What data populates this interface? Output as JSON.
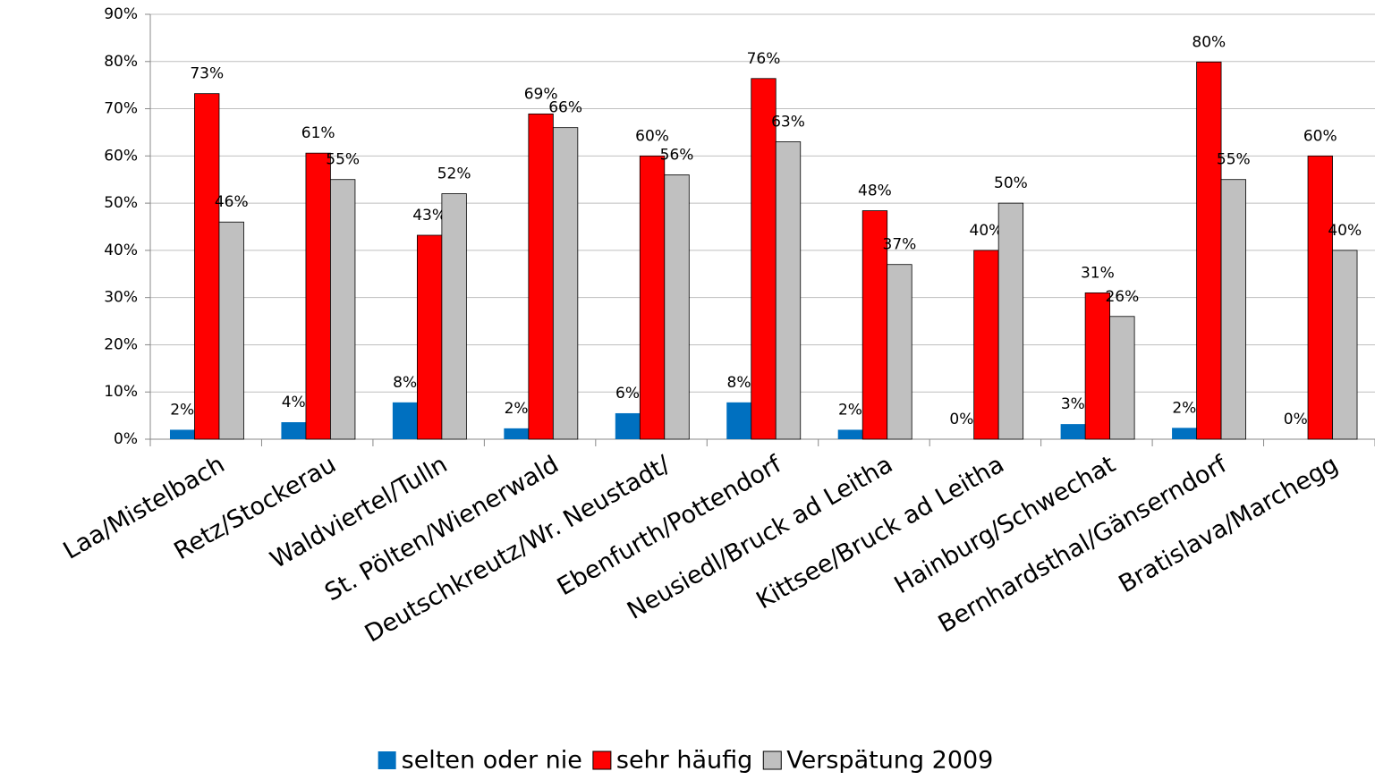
{
  "chart_data": {
    "type": "bar",
    "categories": [
      "Laa/Mistelbach",
      "Retz/Stockerau",
      "Waldviertel/Tulln",
      "St. Pölten/Wienerwald",
      "Deutschkreutz/Wr. Neustadt/",
      "Ebenfurth/Pottendorf",
      "Neusiedl/Bruck ad Leitha",
      "Kittsee/Bruck ad Leitha",
      "Hainburg/Schwechat",
      "Bernhardsthal/Gänserndorf",
      "Bratislava/Marchegg"
    ],
    "series": [
      {
        "name": "selten oder nie",
        "color": "#0070c0",
        "values": [
          2,
          3.6,
          7.8,
          2.3,
          5.5,
          7.8,
          2,
          0,
          3.2,
          2.4,
          0
        ],
        "value_labels": [
          "2%",
          "4%",
          "8%",
          "2%",
          "6%",
          "8%",
          "2%",
          "0%",
          "3%",
          "2%",
          "0%"
        ]
      },
      {
        "name": "sehr häufig",
        "color": "#ff0000",
        "values": [
          73.2,
          60.6,
          43.2,
          68.9,
          60,
          76.4,
          48.4,
          40,
          31,
          79.9,
          60
        ],
        "value_labels": [
          "73%",
          "61%",
          "43%",
          "69%",
          "60%",
          "76%",
          "48%",
          "40%",
          "31%",
          "80%",
          "60%"
        ]
      },
      {
        "name": "Verspätung 2009",
        "color": "#c0c0c0",
        "values": [
          46,
          55,
          52,
          66,
          56,
          63,
          37,
          50,
          26,
          55,
          40
        ],
        "value_labels": [
          "46%",
          "55%",
          "52%",
          "66%",
          "56%",
          "63%",
          "37%",
          "50%",
          "26%",
          "55%",
          "40%"
        ]
      }
    ],
    "ylim": [
      0,
      90
    ],
    "yticks": [
      {
        "value": 0,
        "label": "0%"
      },
      {
        "value": 10,
        "label": "10%"
      },
      {
        "value": 20,
        "label": "20%"
      },
      {
        "value": 30,
        "label": "30%"
      },
      {
        "value": 40,
        "label": "40%"
      },
      {
        "value": 50,
        "label": "50%"
      },
      {
        "value": 60,
        "label": "60%"
      },
      {
        "value": 70,
        "label": "70%"
      },
      {
        "value": 80,
        "label": "80%"
      },
      {
        "value": 90,
        "label": "90%"
      }
    ],
    "grid": true,
    "legend": "bottom"
  }
}
